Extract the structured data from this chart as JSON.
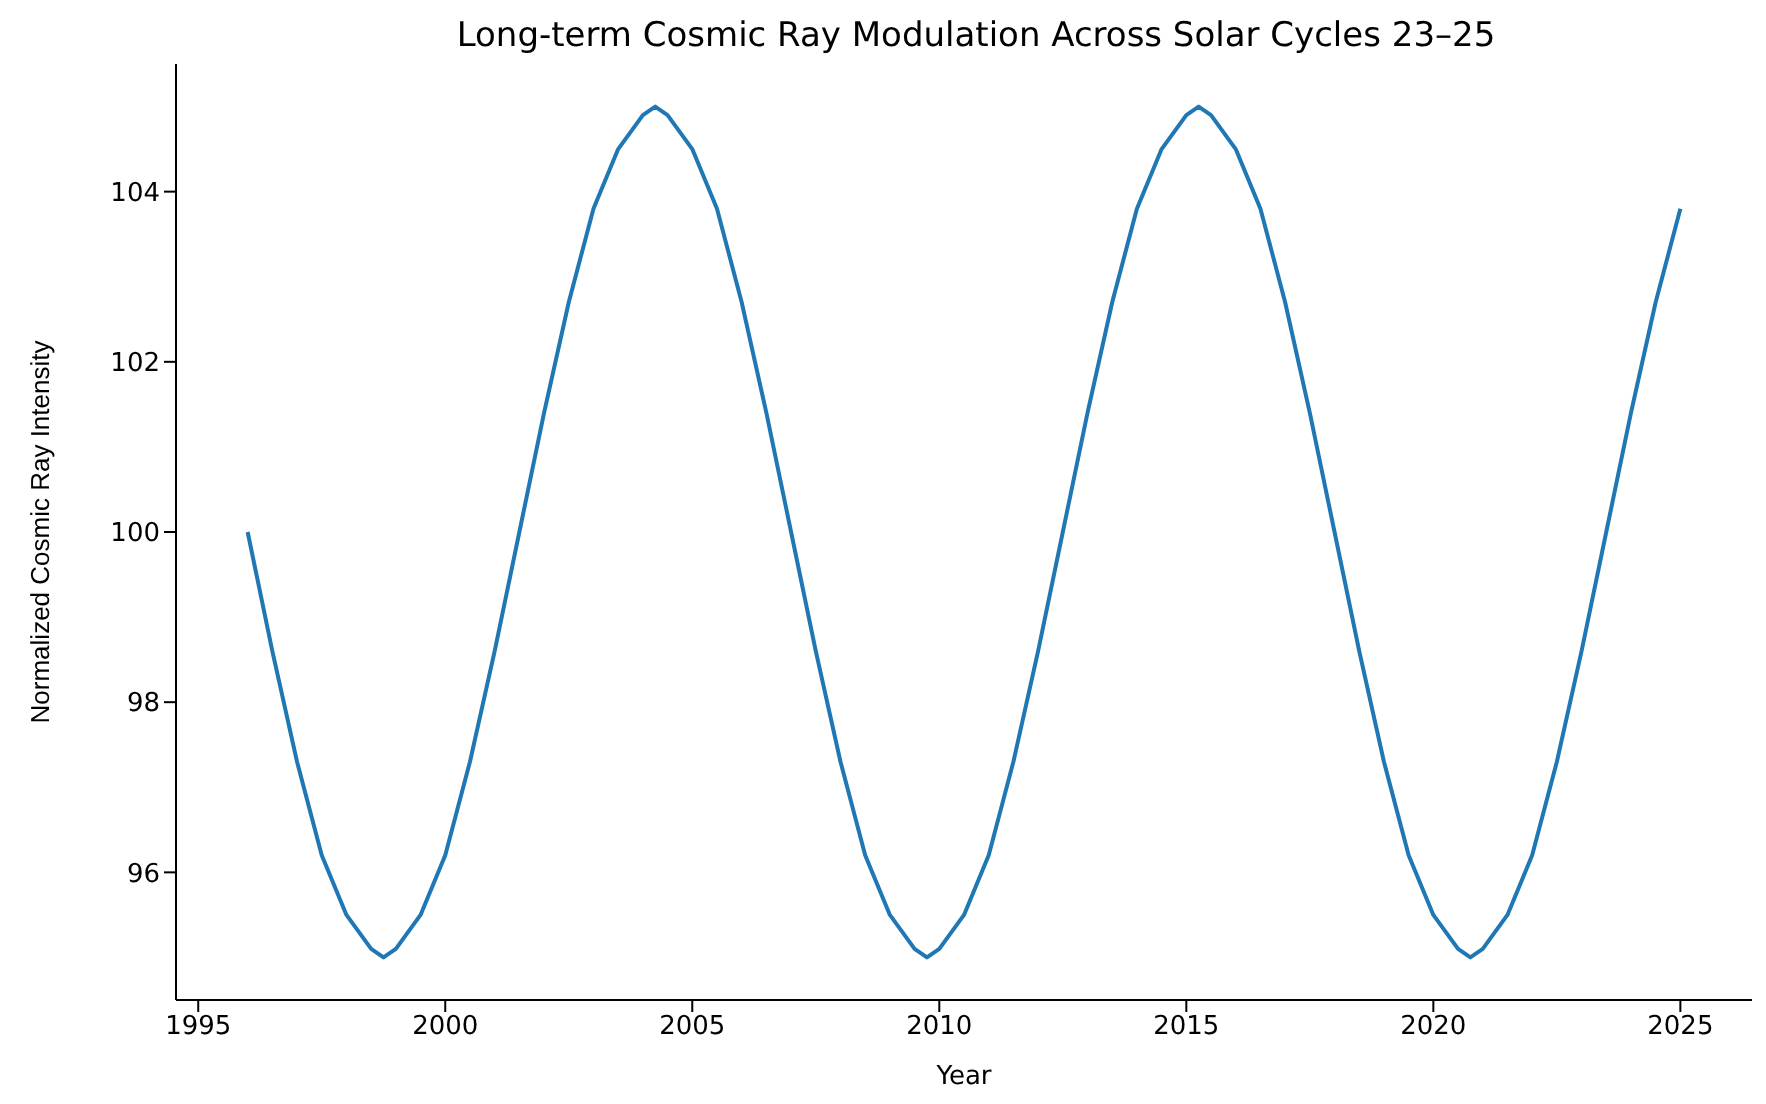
{
  "chart_data": {
    "type": "line",
    "title": "Long-term Cosmic Ray Modulation Across Solar Cycles 23–25",
    "xlabel": "Year",
    "ylabel": "Normalized Cosmic Ray Intensity",
    "x": [
      1996,
      1996.5,
      1997,
      1997.5,
      1998,
      1998.5,
      1998.75,
      1999,
      1999.5,
      2000,
      2000.5,
      2001,
      2001.5,
      2002,
      2002.5,
      2003,
      2003.5,
      2004,
      2004.25,
      2004.5,
      2005,
      2005.5,
      2006,
      2006.5,
      2007,
      2007.5,
      2008,
      2008.5,
      2009,
      2009.5,
      2009.75,
      2010,
      2010.5,
      2011,
      2011.5,
      2012,
      2012.5,
      2013,
      2013.5,
      2014,
      2014.5,
      2015,
      2015.25,
      2015.5,
      2016,
      2016.5,
      2017,
      2017.5,
      2018,
      2018.5,
      2019,
      2019.5,
      2020,
      2020.5,
      2020.75,
      2021,
      2021.5,
      2022,
      2022.5,
      2023,
      2023.5,
      2024,
      2024.5,
      2025
    ],
    "series": [
      {
        "color": "#1f77b4",
        "values": [
          100,
          98.6,
          97.3,
          96.2,
          95.5,
          95.1,
          95,
          95.1,
          95.5,
          96.2,
          97.3,
          98.6,
          100,
          101.4,
          102.7,
          103.8,
          104.5,
          104.9,
          105,
          104.9,
          104.5,
          103.8,
          102.7,
          101.4,
          100,
          98.6,
          97.3,
          96.2,
          95.5,
          95.1,
          95,
          95.1,
          95.5,
          96.2,
          97.3,
          98.6,
          100,
          101.4,
          102.7,
          103.8,
          104.5,
          104.9,
          105,
          104.9,
          104.5,
          103.8,
          102.7,
          101.4,
          100,
          98.6,
          97.3,
          96.2,
          95.5,
          95.1,
          95,
          95.1,
          95.5,
          96.2,
          97.3,
          98.6,
          100,
          101.4,
          102.7,
          103.8
        ]
      }
    ],
    "xlim": [
      1994.55,
      2026.45
    ],
    "ylim": [
      94.5,
      105.5
    ],
    "xticks": [
      1995,
      2000,
      2005,
      2010,
      2015,
      2020,
      2025
    ],
    "yticks": [
      96,
      98,
      100,
      102,
      104
    ],
    "grid": false
  }
}
